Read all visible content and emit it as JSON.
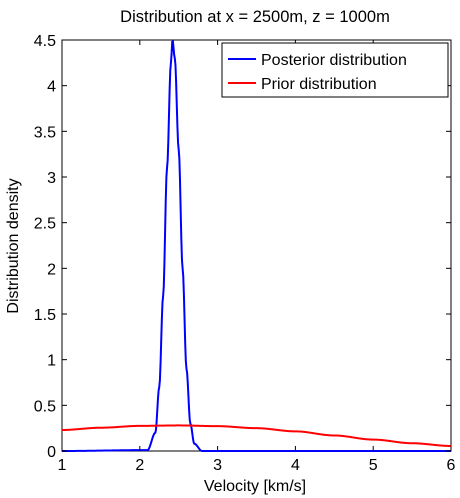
{
  "chart_data": {
    "type": "line",
    "title": "Distribution at x = 2500m, z = 1000m",
    "xlabel": "Velocity [km/s]",
    "ylabel": "Distribution density",
    "xlim": [
      1,
      6
    ],
    "ylim": [
      0,
      4.5
    ],
    "xticks": [
      "1",
      "2",
      "3",
      "4",
      "5",
      "6"
    ],
    "yticks": [
      "0",
      "0.5",
      "1",
      "1.5",
      "2",
      "2.5",
      "3",
      "3.5",
      "4",
      "4.5"
    ],
    "grid": false,
    "legend_position": "top-right",
    "series": [
      {
        "name": "Posterior distribution",
        "color": "#0000ff",
        "x": [
          1.0,
          2.1,
          2.2,
          2.25,
          2.3,
          2.35,
          2.4,
          2.42,
          2.45,
          2.5,
          2.55,
          2.6,
          2.65,
          2.7,
          2.8,
          6.0
        ],
        "y": [
          0.0,
          0.01,
          0.2,
          0.7,
          1.7,
          3.1,
          4.25,
          4.5,
          4.3,
          3.3,
          2.0,
          0.9,
          0.3,
          0.08,
          0.0,
          0.0
        ]
      },
      {
        "name": "Prior distribution",
        "color": "#ff0000",
        "x": [
          1.0,
          1.5,
          2.0,
          2.5,
          3.0,
          3.5,
          4.0,
          4.5,
          5.0,
          5.5,
          6.0
        ],
        "y": [
          0.23,
          0.255,
          0.275,
          0.28,
          0.272,
          0.25,
          0.215,
          0.17,
          0.125,
          0.085,
          0.055
        ]
      }
    ]
  }
}
